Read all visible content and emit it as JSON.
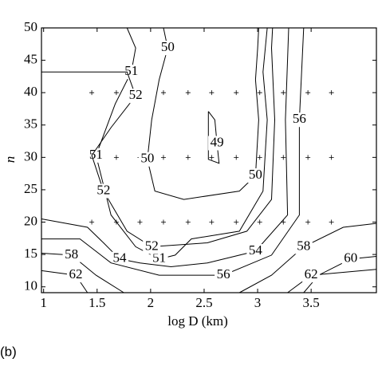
{
  "chart_data": {
    "type": "contour",
    "xlabel": "log D (km)",
    "ylabel": "n",
    "panel_label": "(b)",
    "xlim": [
      0.98,
      4.11
    ],
    "ylim": [
      9.1,
      50
    ],
    "xticks": [
      1,
      1.5,
      2,
      2.5,
      3,
      3.5
    ],
    "yticks": [
      10,
      15,
      20,
      25,
      30,
      35,
      40,
      45,
      50
    ],
    "color": "#000000",
    "contours": [
      {
        "level": 50,
        "x": [
          2.12,
          2.16,
          2.08,
          2.01,
          1.97,
          2.04,
          2.31,
          2.83,
          2.98,
          3.01,
          2.98,
          3.0,
          3.01
        ],
        "y": [
          50,
          46.9,
          42,
          35.8,
          29.7,
          24.8,
          23.5,
          24.8,
          27.2,
          35.8,
          42,
          46.9,
          50
        ]
      },
      {
        "level": 51,
        "x": [
          1.78,
          1.86,
          1.82,
          1.67,
          1.49,
          1.63,
          1.86,
          2.08,
          2.23,
          2.38,
          2.83,
          3.05,
          3.09,
          3.05,
          3.09
        ],
        "y": [
          50,
          46.9,
          43.2,
          38.3,
          30.3,
          21.1,
          16.2,
          14.3,
          14.9,
          17.4,
          18.6,
          24.8,
          35.8,
          43.2,
          50
        ]
      },
      {
        "level": 52,
        "x": [
          0.98,
          1.78,
          1.86,
          1.63,
          1.45,
          1.56,
          1.78,
          2.01,
          2.53,
          2.9,
          3.13,
          3.16,
          3.13,
          3.14
        ],
        "y": [
          43.2,
          43.2,
          39.5,
          34.6,
          30.3,
          24.8,
          18.6,
          16.2,
          16.8,
          18.6,
          23.5,
          35.8,
          46.9,
          50
        ]
      },
      {
        "level": 54,
        "x": [
          0.98,
          1.41,
          1.56,
          1.71,
          1.9,
          2.19,
          2.53,
          2.98,
          3.28,
          3.26,
          3.29
        ],
        "y": [
          20.5,
          19.2,
          16.8,
          14.3,
          13.7,
          13.1,
          13.7,
          15.5,
          21.1,
          35.8,
          50
        ]
      },
      {
        "level": 56,
        "x": [
          0.98,
          1.34,
          1.63,
          2.08,
          2.68,
          3.13,
          3.39,
          3.39,
          3.43
        ],
        "y": [
          17.4,
          17.4,
          13.7,
          11.8,
          11.8,
          14.9,
          21.1,
          35.8,
          50
        ]
      },
      {
        "level": 58,
        "x": [
          0.98,
          1.26,
          1.49,
          1.75,
          null,
          2.83,
          3.13,
          3.43,
          3.8,
          4.11
        ],
        "y": [
          15.2,
          14.9,
          11.8,
          9.1,
          null,
          9.1,
          11.8,
          16.2,
          19.2,
          19.8
        ]
      },
      {
        "level": 60,
        "x": [
          3.43,
          3.57,
          3.87,
          4.11
        ],
        "y": [
          9.1,
          11.8,
          14.3,
          14.7
        ]
      },
      {
        "level": 62,
        "x": [
          0.98,
          1.3,
          1.41,
          null,
          3.28,
          3.5,
          4.11
        ],
        "y": [
          12.5,
          11.8,
          9.1,
          null,
          9.1,
          11.8,
          12.7
        ]
      },
      {
        "level": 49,
        "x": [
          2.54,
          2.6,
          2.62,
          2.64,
          2.54,
          2.54,
          2.54
        ],
        "y": [
          37.1,
          35.8,
          32.2,
          29.1,
          29.7,
          33.4,
          37.1
        ]
      }
    ],
    "points": {
      "x": [
        1.45,
        1.68,
        1.9,
        2.12,
        2.35,
        2.57,
        2.8,
        3.02,
        3.24,
        3.47,
        3.69,
        1.45,
        1.68,
        1.9,
        2.12,
        2.35,
        2.57,
        2.8,
        3.02,
        3.24,
        3.47,
        3.69,
        1.45,
        1.68,
        1.9,
        2.12,
        2.35,
        2.57,
        2.8,
        3.02,
        3.24,
        3.47,
        3.69
      ],
      "y": [
        20,
        20,
        20,
        20,
        20,
        20,
        20,
        20,
        20,
        20,
        20,
        30,
        30,
        30,
        30,
        30,
        30,
        30,
        30,
        30,
        30,
        30,
        40,
        40,
        40,
        40,
        40,
        40,
        40,
        40,
        40,
        40,
        40
      ]
    }
  }
}
